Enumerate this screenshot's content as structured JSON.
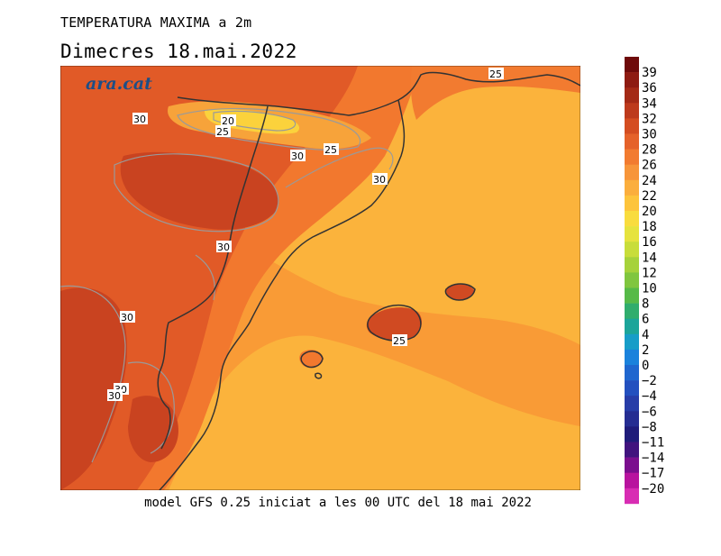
{
  "header": {
    "title": "TEMPERATURA MAXIMA a 2m",
    "subtitle": "Dimecres   18.mai.2022"
  },
  "footer": {
    "caption": "model GFS 0.25 iniciat a les 00 UTC del 18 mai 2022"
  },
  "logo": {
    "text": "ara.cat"
  },
  "contour_labels": [
    "25",
    "20",
    "25",
    "30",
    "30",
    "25",
    "30",
    "30",
    "30",
    "30",
    "30",
    "25"
  ],
  "legend": {
    "levels": [
      {
        "label": "39",
        "color": "#6e0a0a"
      },
      {
        "label": "36",
        "color": "#8e1b12"
      },
      {
        "label": "34",
        "color": "#a42a16"
      },
      {
        "label": "32",
        "color": "#bd3a1c"
      },
      {
        "label": "30",
        "color": "#d44d21"
      },
      {
        "label": "28",
        "color": "#e5622a"
      },
      {
        "label": "26",
        "color": "#f27b30"
      },
      {
        "label": "24",
        "color": "#f7953a"
      },
      {
        "label": "22",
        "color": "#fbae3d"
      },
      {
        "label": "20",
        "color": "#fdc43c"
      },
      {
        "label": "18",
        "color": "#f9dc3e"
      },
      {
        "label": "16",
        "color": "#e6e33e"
      },
      {
        "label": "14",
        "color": "#c8dd3a"
      },
      {
        "label": "12",
        "color": "#a6d23b"
      },
      {
        "label": "10",
        "color": "#80c63f"
      },
      {
        "label": "8",
        "color": "#56ba48"
      },
      {
        "label": "6",
        "color": "#30ad6d"
      },
      {
        "label": "4",
        "color": "#1ca59a"
      },
      {
        "label": "2",
        "color": "#179dc8"
      },
      {
        "label": "0",
        "color": "#1a82dc"
      },
      {
        "label": "−2",
        "color": "#1f67cf"
      },
      {
        "label": "−4",
        "color": "#2350bf"
      },
      {
        "label": "−6",
        "color": "#273da8"
      },
      {
        "label": "−8",
        "color": "#252d92"
      },
      {
        "label": "−11",
        "color": "#1f1c7a"
      },
      {
        "label": "−14",
        "color": "#41137e"
      },
      {
        "label": "−17",
        "color": "#7b0e8e"
      },
      {
        "label": "−20",
        "color": "#b8139e"
      },
      {
        "label": "",
        "color": "#d82cb3"
      }
    ]
  }
}
